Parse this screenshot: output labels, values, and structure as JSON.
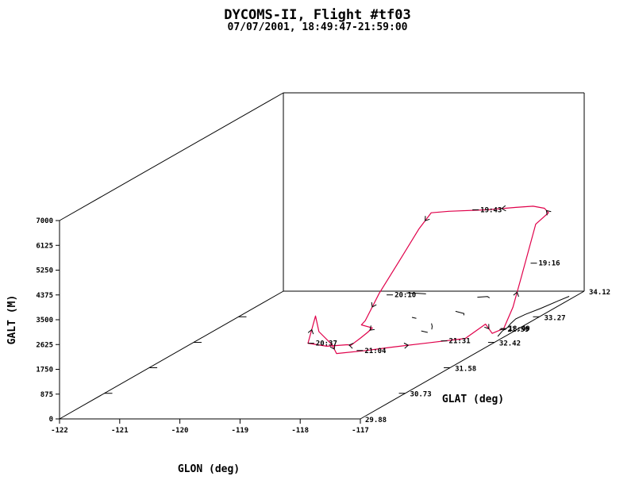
{
  "chart_data": {
    "type": "line",
    "title": "DYCOMS-II, Flight #tf03",
    "subtitle": "07/07/2001, 18:49:47-21:59:00",
    "projection": "3d",
    "axes": {
      "x": {
        "label": "GLON (deg)",
        "range": [
          -122,
          -117
        ],
        "ticks": [
          "-122",
          "-121",
          "-120",
          "-119",
          "-118",
          "-117"
        ]
      },
      "y": {
        "label": "GLAT (deg)",
        "range": [
          29.88,
          34.12
        ],
        "ticks": [
          "29.88",
          "30.73",
          "31.58",
          "32.42",
          "33.27",
          "34.12"
        ]
      },
      "z": {
        "label": "GALT (M)",
        "range": [
          0,
          7000
        ],
        "ticks": [
          "0",
          "875",
          "1750",
          "2625",
          "3500",
          "4375",
          "5250",
          "6125",
          "7000"
        ]
      }
    },
    "colors": {
      "track": "#e0004a",
      "coastline": "#000000"
    },
    "series": [
      {
        "color": "#e0004a",
        "points": [
          {
            "lon": -117.25,
            "lat": 32.88,
            "alt": 0
          },
          {
            "lon": -117.22,
            "lat": 33.02,
            "alt": 600
          },
          {
            "lon": -117.22,
            "lat": 33.18,
            "alt": 1500
          },
          {
            "lon": -117.28,
            "lat": 33.52,
            "alt": 3000
          },
          {
            "lon": -117.4,
            "lat": 33.9,
            "alt": 3000
          },
          {
            "lon": -117.6,
            "lat": 34.05,
            "alt": 3000
          },
          {
            "lon": -117.85,
            "lat": 34.12,
            "alt": 3000
          },
          {
            "lon": -118.1,
            "lat": 34.08,
            "alt": 3000
          },
          {
            "lon": -118.5,
            "lat": 34.0,
            "alt": 3000
          },
          {
            "lon": -119.1,
            "lat": 33.95,
            "alt": 3000
          },
          {
            "lon": -119.35,
            "lat": 33.9,
            "alt": 3000
          },
          {
            "lon": -119.42,
            "lat": 33.75,
            "alt": 2600
          },
          {
            "lon": -119.48,
            "lat": 33.45,
            "alt": 1800
          },
          {
            "lon": -119.6,
            "lat": 33.2,
            "alt": 900
          },
          {
            "lon": -119.7,
            "lat": 33.05,
            "alt": 100
          },
          {
            "lon": -119.72,
            "lat": 33.0,
            "alt": 0
          },
          {
            "lon": -119.45,
            "lat": 32.9,
            "alt": 0
          },
          {
            "lon": -119.4,
            "lat": 32.75,
            "alt": 0
          },
          {
            "lon": -119.35,
            "lat": 32.55,
            "alt": 0
          },
          {
            "lon": -119.3,
            "lat": 32.32,
            "alt": 0
          },
          {
            "lon": -119.25,
            "lat": 32.2,
            "alt": 150
          },
          {
            "lon": -119.55,
            "lat": 32.15,
            "alt": 150
          },
          {
            "lon": -119.95,
            "lat": 32.25,
            "alt": 150
          },
          {
            "lon": -120.0,
            "lat": 32.45,
            "alt": 900
          },
          {
            "lon": -119.9,
            "lat": 32.4,
            "alt": 400
          },
          {
            "lon": -119.55,
            "lat": 32.25,
            "alt": 100
          },
          {
            "lon": -119.3,
            "lat": 32.05,
            "alt": 0
          },
          {
            "lon": -118.9,
            "lat": 32.15,
            "alt": 0
          },
          {
            "lon": -118.6,
            "lat": 32.25,
            "alt": 0
          },
          {
            "lon": -118.1,
            "lat": 32.4,
            "alt": 0
          },
          {
            "lon": -117.6,
            "lat": 32.55,
            "alt": 0
          },
          {
            "lon": -117.35,
            "lat": 32.65,
            "alt": 400
          },
          {
            "lon": -117.3,
            "lat": 32.72,
            "alt": 0
          },
          {
            "lon": -117.25,
            "lat": 32.88,
            "alt": 0
          }
        ]
      }
    ],
    "time_labels": [
      {
        "label": "19:43",
        "lon": -118.7,
        "lat": 34.0,
        "alt": 3000
      },
      {
        "label": "19:16",
        "lon": -117.25,
        "lat": 33.45,
        "alt": 1700
      },
      {
        "label": "20:10",
        "lon": -119.38,
        "lat": 33.15,
        "alt": 900
      },
      {
        "label": "20:37",
        "lon": -119.9,
        "lat": 32.25,
        "alt": 150
      },
      {
        "label": "21:04",
        "lon": -119.0,
        "lat": 32.15,
        "alt": 0
      },
      {
        "label": "21:31",
        "lon": -117.88,
        "lat": 32.47,
        "alt": 0
      },
      {
        "label": "18:49",
        "lon": -117.25,
        "lat": 32.88,
        "alt": 0
      },
      {
        "label": "21:59",
        "lon": -117.24,
        "lat": 32.85,
        "alt": 0
      }
    ]
  }
}
